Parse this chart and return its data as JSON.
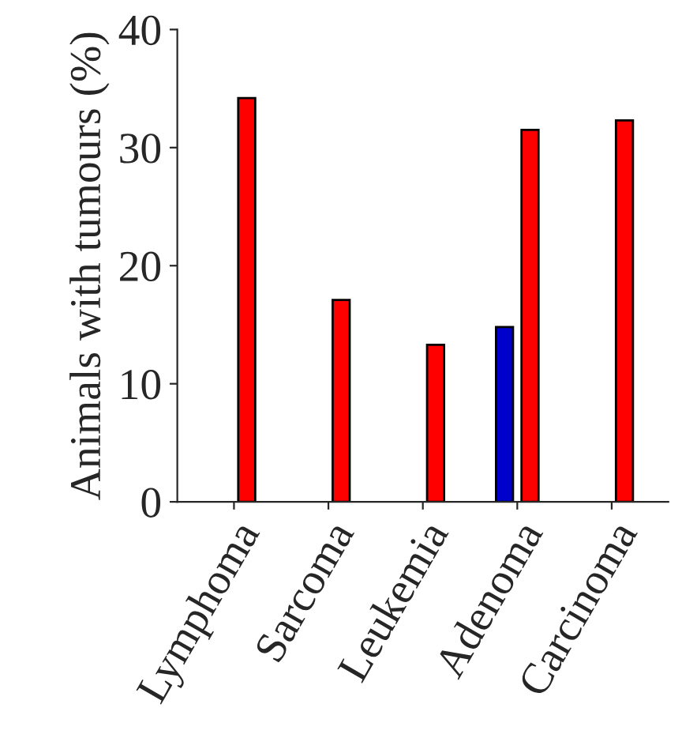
{
  "chart_data": {
    "type": "bar",
    "ylabel": "Animals with tumours (%)",
    "categories": [
      "Lymphoma",
      "Sarcoma",
      "Leukemia",
      "Adenoma",
      "Carcinoma"
    ],
    "series": [
      {
        "color": "#0000cc",
        "values": [
          null,
          null,
          null,
          14.8,
          null
        ]
      },
      {
        "color": "#ff0000",
        "values": [
          34.2,
          17.1,
          13.3,
          31.5,
          32.3
        ]
      }
    ],
    "ylim": [
      0,
      40
    ],
    "yticks": [
      0,
      10,
      20,
      30,
      40
    ],
    "grid": false,
    "legend": false
  }
}
